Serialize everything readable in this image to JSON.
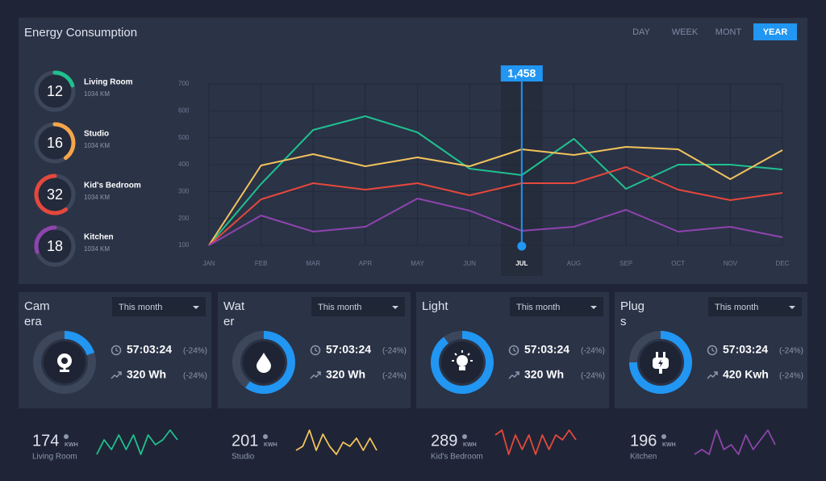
{
  "header": {
    "title": "Energy Consumption"
  },
  "tabs": [
    "DAY",
    "WEEK",
    "MONT",
    "YEAR"
  ],
  "active_tab": "YEAR",
  "rooms": [
    {
      "value": 12,
      "label": "Living Room",
      "sub": "1034 KM",
      "color": "#1fc08e"
    },
    {
      "value": 16,
      "label": "Studio",
      "sub": "1034 KM",
      "color": "#f5a54a"
    },
    {
      "value": 32,
      "label": "Kid's Bedroom",
      "sub": "1034 KM",
      "color": "#e5483c"
    },
    {
      "value": 18,
      "label": "Kitchen",
      "sub": "1034 KM",
      "color": "#8e44ad"
    }
  ],
  "chart_data": {
    "type": "line",
    "categories": [
      "JAN",
      "FEB",
      "MAR",
      "APR",
      "MAY",
      "JUN",
      "JUL",
      "AUG",
      "SEP",
      "OCT",
      "NOV",
      "DEC"
    ],
    "ylim": [
      100,
      700
    ],
    "yticks": [
      100,
      200,
      300,
      400,
      500,
      600,
      700
    ],
    "grid": true,
    "series": [
      {
        "color": "#1fc08e",
        "values": [
          100,
          328,
          529,
          580,
          520,
          385,
          361,
          496,
          310,
          400,
          400,
          382
        ]
      },
      {
        "color": "#f2c35c",
        "values": [
          100,
          397,
          439,
          394,
          427,
          394,
          457,
          436,
          466,
          457,
          346,
          454
        ]
      },
      {
        "color": "#e5483c",
        "values": [
          100,
          271,
          331,
          307,
          331,
          286,
          331,
          331,
          391,
          307,
          268,
          295
        ]
      },
      {
        "color": "#8e44ad",
        "values": [
          100,
          211,
          151,
          169,
          274,
          229,
          154,
          169,
          232,
          151,
          169,
          130
        ]
      }
    ],
    "highlight": {
      "category": "JUL",
      "label": "1,458"
    }
  },
  "cards": [
    {
      "title": "Camera",
      "dropdown": "This month",
      "time": "57:03:24",
      "time_change": "(-24%)",
      "energy": "320 Wh",
      "energy_change": "(-24%)"
    },
    {
      "title": "Water",
      "dropdown": "This month",
      "time": "57:03:24",
      "time_change": "(-24%)",
      "energy": "320 Wh",
      "energy_change": "(-24%)"
    },
    {
      "title": "Light",
      "dropdown": "This month",
      "time": "57:03:24",
      "time_change": "(-24%)",
      "energy": "320 Wh",
      "energy_change": "(-24%)"
    },
    {
      "title": "Plugs",
      "dropdown": "This month",
      "time": "57:03:24",
      "time_change": "(-24%)",
      "energy": "420 Kwh",
      "energy_change": "(-24%)"
    }
  ],
  "summary": [
    {
      "value": 174,
      "unit": "KWH",
      "label": "Living Room",
      "color": "#1fc08e",
      "values": [
        2,
        5,
        3,
        6,
        3,
        6,
        2,
        6,
        4,
        5,
        7,
        5
      ]
    },
    {
      "value": 201,
      "unit": "KWH",
      "label": "Studio",
      "color": "#f2c35c",
      "values": [
        3,
        4,
        8,
        3,
        7,
        4,
        2,
        5,
        4,
        6,
        3,
        6,
        3
      ]
    },
    {
      "value": 289,
      "unit": "KWH",
      "label": "Kid's Bedroom",
      "color": "#e5483c",
      "values": [
        6,
        7,
        2,
        6,
        3,
        6,
        2,
        6,
        3,
        6,
        5,
        7,
        5
      ]
    },
    {
      "value": 196,
      "unit": "KWH",
      "label": "Kitchen",
      "color": "#8e44ad",
      "values": [
        3,
        4,
        3,
        8,
        4,
        5,
        3,
        7,
        4,
        6,
        8,
        5
      ]
    }
  ]
}
